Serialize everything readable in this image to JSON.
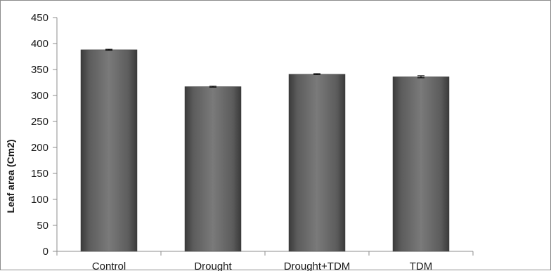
{
  "chart_data": {
    "type": "bar",
    "title": "",
    "xlabel": "",
    "ylabel": "Leaf area (Cm2)",
    "categories": [
      "Control",
      "Drought",
      "Drought+TDM",
      "TDM"
    ],
    "values": [
      388,
      317,
      341,
      336
    ],
    "errors": [
      1,
      1,
      1,
      2
    ],
    "ylim": [
      0,
      450
    ],
    "yticks": [
      0,
      50,
      100,
      150,
      200,
      250,
      300,
      350,
      400,
      450
    ],
    "ytick_labels": [
      "0",
      "50",
      "100",
      "150",
      "200",
      "250",
      "300",
      "350",
      "400",
      "450"
    ],
    "grid": false,
    "legend": "none",
    "bar_color": "#5a5a5a",
    "axis_color": "#8c8c8c"
  }
}
